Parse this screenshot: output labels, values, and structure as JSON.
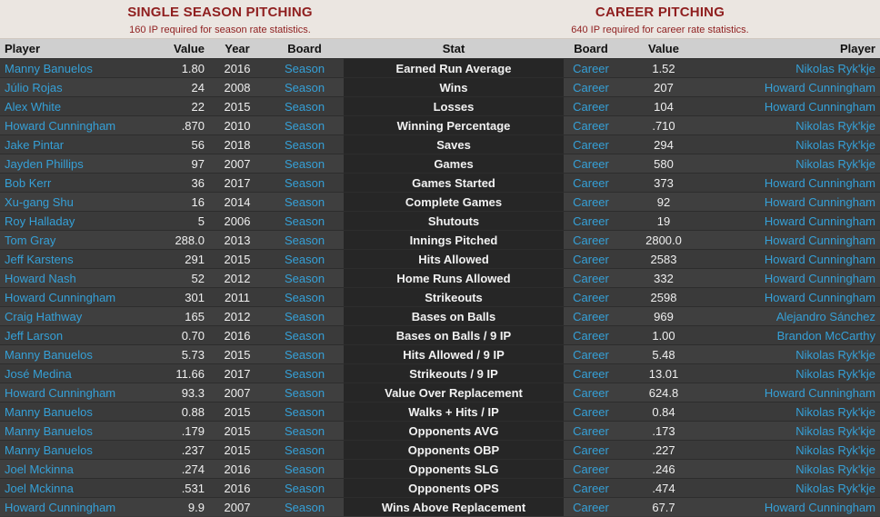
{
  "header": {
    "left_title": "SINGLE SEASON PITCHING",
    "left_note": "160 IP required for season rate statistics.",
    "right_title": "CAREER PITCHING",
    "right_note": "640 IP required for career rate statistics."
  },
  "columns": [
    "Player",
    "Value",
    "Year",
    "Board",
    "Stat",
    "Board",
    "Value",
    "Player"
  ],
  "rows": [
    {
      "sp": "Manny Banuelos",
      "sv": "1.80",
      "sy": "2016",
      "sb": "Season",
      "stat": "Earned Run Average",
      "cb": "Career",
      "cv": "1.52",
      "cp": "Nikolas Ryk'kje"
    },
    {
      "sp": "Júlio Rojas",
      "sv": "24",
      "sy": "2008",
      "sb": "Season",
      "stat": "Wins",
      "cb": "Career",
      "cv": "207",
      "cp": "Howard Cunningham"
    },
    {
      "sp": "Alex White",
      "sv": "22",
      "sy": "2015",
      "sb": "Season",
      "stat": "Losses",
      "cb": "Career",
      "cv": "104",
      "cp": "Howard Cunningham"
    },
    {
      "sp": "Howard Cunningham",
      "sv": ".870",
      "sy": "2010",
      "sb": "Season",
      "stat": "Winning Percentage",
      "cb": "Career",
      "cv": ".710",
      "cp": "Nikolas Ryk'kje"
    },
    {
      "sp": "Jake Pintar",
      "sv": "56",
      "sy": "2018",
      "sb": "Season",
      "stat": "Saves",
      "cb": "Career",
      "cv": "294",
      "cp": "Nikolas Ryk'kje"
    },
    {
      "sp": "Jayden Phillips",
      "sv": "97",
      "sy": "2007",
      "sb": "Season",
      "stat": "Games",
      "cb": "Career",
      "cv": "580",
      "cp": "Nikolas Ryk'kje"
    },
    {
      "sp": "Bob Kerr",
      "sv": "36",
      "sy": "2017",
      "sb": "Season",
      "stat": "Games Started",
      "cb": "Career",
      "cv": "373",
      "cp": "Howard Cunningham"
    },
    {
      "sp": "Xu-gang Shu",
      "sv": "16",
      "sy": "2014",
      "sb": "Season",
      "stat": "Complete Games",
      "cb": "Career",
      "cv": "92",
      "cp": "Howard Cunningham"
    },
    {
      "sp": "Roy Halladay",
      "sv": "5",
      "sy": "2006",
      "sb": "Season",
      "stat": "Shutouts",
      "cb": "Career",
      "cv": "19",
      "cp": "Howard Cunningham"
    },
    {
      "sp": "Tom Gray",
      "sv": "288.0",
      "sy": "2013",
      "sb": "Season",
      "stat": "Innings Pitched",
      "cb": "Career",
      "cv": "2800.0",
      "cp": "Howard Cunningham"
    },
    {
      "sp": "Jeff Karstens",
      "sv": "291",
      "sy": "2015",
      "sb": "Season",
      "stat": "Hits Allowed",
      "cb": "Career",
      "cv": "2583",
      "cp": "Howard Cunningham"
    },
    {
      "sp": "Howard Nash",
      "sv": "52",
      "sy": "2012",
      "sb": "Season",
      "stat": "Home Runs Allowed",
      "cb": "Career",
      "cv": "332",
      "cp": "Howard Cunningham"
    },
    {
      "sp": "Howard Cunningham",
      "sv": "301",
      "sy": "2011",
      "sb": "Season",
      "stat": "Strikeouts",
      "cb": "Career",
      "cv": "2598",
      "cp": "Howard Cunningham"
    },
    {
      "sp": "Craig Hathway",
      "sv": "165",
      "sy": "2012",
      "sb": "Season",
      "stat": "Bases on Balls",
      "cb": "Career",
      "cv": "969",
      "cp": "Alejandro Sánchez"
    },
    {
      "sp": "Jeff Larson",
      "sv": "0.70",
      "sy": "2016",
      "sb": "Season",
      "stat": "Bases on Balls / 9 IP",
      "cb": "Career",
      "cv": "1.00",
      "cp": "Brandon McCarthy"
    },
    {
      "sp": "Manny Banuelos",
      "sv": "5.73",
      "sy": "2015",
      "sb": "Season",
      "stat": "Hits Allowed / 9 IP",
      "cb": "Career",
      "cv": "5.48",
      "cp": "Nikolas Ryk'kje"
    },
    {
      "sp": "José Medina",
      "sv": "11.66",
      "sy": "2017",
      "sb": "Season",
      "stat": "Strikeouts / 9 IP",
      "cb": "Career",
      "cv": "13.01",
      "cp": "Nikolas Ryk'kje"
    },
    {
      "sp": "Howard Cunningham",
      "sv": "93.3",
      "sy": "2007",
      "sb": "Season",
      "stat": "Value Over Replacement",
      "cb": "Career",
      "cv": "624.8",
      "cp": "Howard Cunningham"
    },
    {
      "sp": "Manny Banuelos",
      "sv": "0.88",
      "sy": "2015",
      "sb": "Season",
      "stat": "Walks + Hits / IP",
      "cb": "Career",
      "cv": "0.84",
      "cp": "Nikolas Ryk'kje"
    },
    {
      "sp": "Manny Banuelos",
      "sv": ".179",
      "sy": "2015",
      "sb": "Season",
      "stat": "Opponents AVG",
      "cb": "Career",
      "cv": ".173",
      "cp": "Nikolas Ryk'kje"
    },
    {
      "sp": "Manny Banuelos",
      "sv": ".237",
      "sy": "2015",
      "sb": "Season",
      "stat": "Opponents OBP",
      "cb": "Career",
      "cv": ".227",
      "cp": "Nikolas Ryk'kje"
    },
    {
      "sp": "Joel Mckinna",
      "sv": ".274",
      "sy": "2016",
      "sb": "Season",
      "stat": "Opponents SLG",
      "cb": "Career",
      "cv": ".246",
      "cp": "Nikolas Ryk'kje"
    },
    {
      "sp": "Joel Mckinna",
      "sv": ".531",
      "sy": "2016",
      "sb": "Season",
      "stat": "Opponents OPS",
      "cb": "Career",
      "cv": ".474",
      "cp": "Nikolas Ryk'kje"
    },
    {
      "sp": "Howard Cunningham",
      "sv": "9.9",
      "sy": "2007",
      "sb": "Season",
      "stat": "Wins Above Replacement",
      "cb": "Career",
      "cv": "67.7",
      "cp": "Howard Cunningham"
    }
  ]
}
